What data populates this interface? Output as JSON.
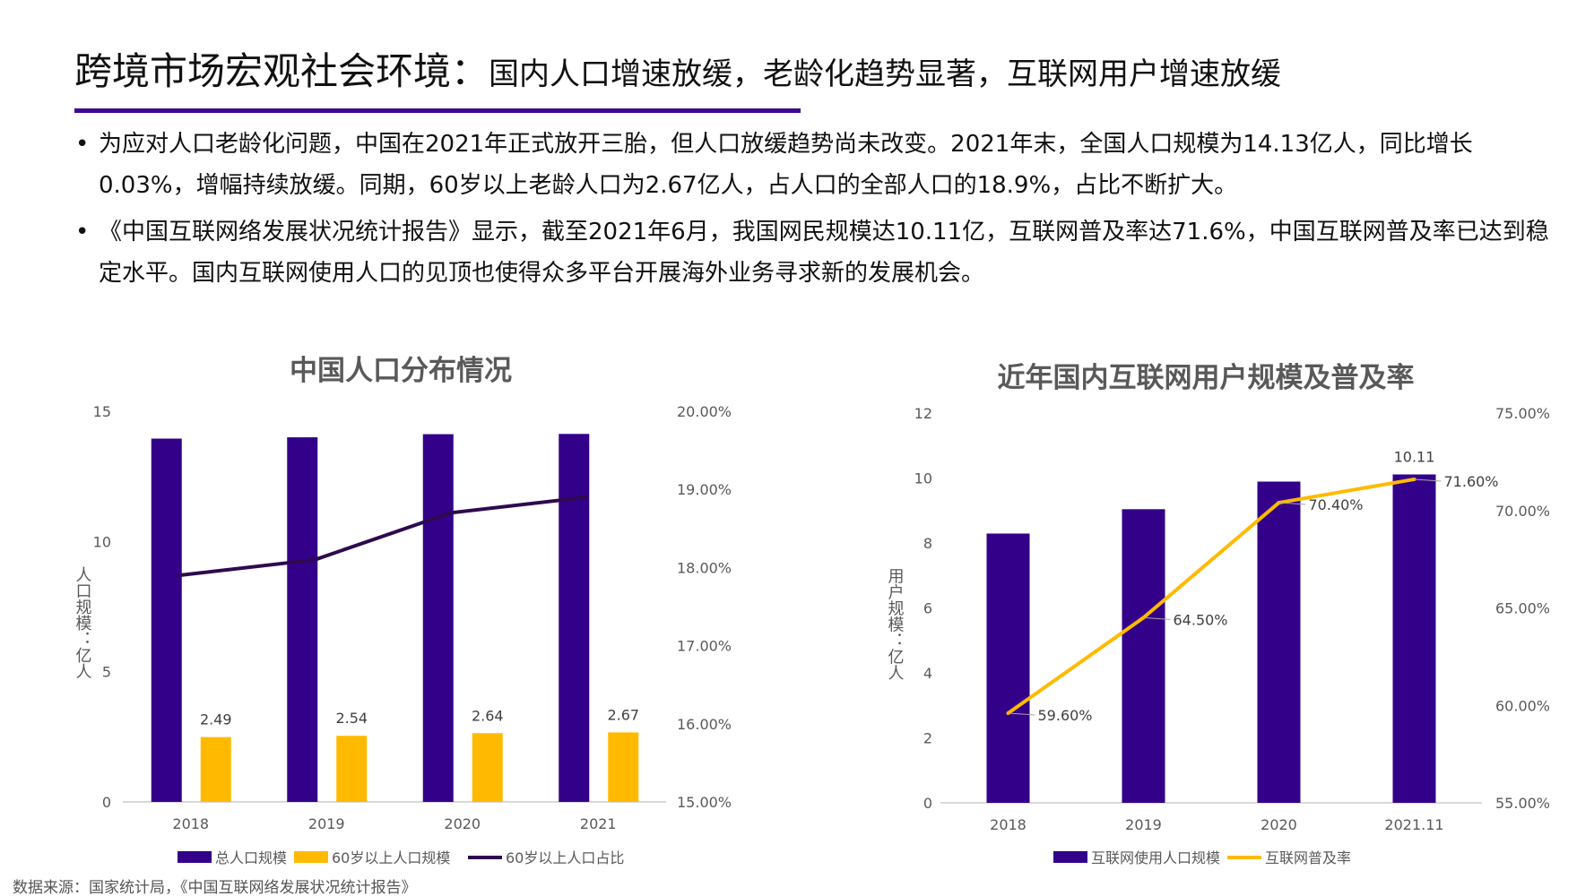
{
  "header": {
    "title_lead": "跨境市场宏观社会环境：",
    "title_rest": "国内人口增速放缓，老龄化趋势显著，互联网用户增速放缓",
    "accent": "#3b0a8f"
  },
  "bullets": [
    {
      "text": "为应对人口老龄化问题，中国在2021年正式放开三胎，但人口放缓趋势尚未改变。2021年末，全国人口规模为14.13亿人，同比增长0.03%，增幅持续放缓。同期，60岁以上老龄人口为2.67亿人，占人口的全部人口的18.9%，占比不断扩大。"
    },
    {
      "text": "《中国互联网络发展状况统计报告》显示，截至2021年6月，我国网民规模达10.11亿，互联网普及率达71.6%，中国互联网普及率已达到稳定水平。国内互联网使用人口的见顶也使得众多平台开展海外业务寻求新的发展机会。"
    }
  ],
  "bullet_symbol": "•",
  "source": "数据来源：国家统计局，《中国互联网络发展状况统计报告》",
  "chart_data": [
    {
      "type": "bar+line",
      "title": "中国人口分布情况",
      "categories": [
        "2018",
        "2019",
        "2020",
        "2021"
      ],
      "ylabel": "人口规模：亿人",
      "ylim": [
        0,
        15
      ],
      "yticks": [
        "0",
        "5",
        "10",
        "15"
      ],
      "y2lim": [
        15,
        20
      ],
      "y2ticks": [
        "15.00%",
        "16.00%",
        "17.00%",
        "18.00%",
        "19.00%",
        "20.00%"
      ],
      "series": [
        {
          "name": "总人口规模",
          "kind": "bar",
          "axis": "left",
          "color": "#33008a",
          "values": [
            13.95,
            14.0,
            14.12,
            14.13
          ]
        },
        {
          "name": "60岁以上人口规模",
          "kind": "bar",
          "axis": "left",
          "color": "#ffba00",
          "values": [
            2.49,
            2.54,
            2.64,
            2.67
          ],
          "labels": [
            "2.49",
            "2.54",
            "2.64",
            "2.67"
          ]
        },
        {
          "name": "60岁以上人口占比",
          "kind": "line",
          "axis": "right",
          "color": "#2e0a4f",
          "values": [
            17.9,
            18.1,
            18.7,
            18.9
          ]
        }
      ],
      "legend": "bottom"
    },
    {
      "type": "bar+line",
      "title": "近年国内互联网用户规模及普及率",
      "categories": [
        "2018",
        "2019",
        "2020",
        "2021.11"
      ],
      "ylabel": "用户规模：亿人",
      "ylim": [
        0,
        12
      ],
      "yticks": [
        "0",
        "2",
        "4",
        "6",
        "8",
        "10",
        "12"
      ],
      "y2lim": [
        55,
        75
      ],
      "y2ticks": [
        "55.00%",
        "60.00%",
        "65.00%",
        "70.00%",
        "75.00%"
      ],
      "series": [
        {
          "name": "互联网使用人口规模",
          "kind": "bar",
          "axis": "left",
          "color": "#33008a",
          "values": [
            8.29,
            9.04,
            9.89,
            10.11
          ],
          "labels": [
            "",
            "",
            "",
            "10.11"
          ]
        },
        {
          "name": "互联网普及率",
          "kind": "line",
          "axis": "right",
          "color": "#ffba00",
          "values": [
            59.6,
            64.5,
            70.4,
            71.6
          ],
          "labels": [
            "59.60%",
            "64.50%",
            "70.40%",
            "71.60%"
          ]
        }
      ],
      "legend": "bottom"
    }
  ]
}
